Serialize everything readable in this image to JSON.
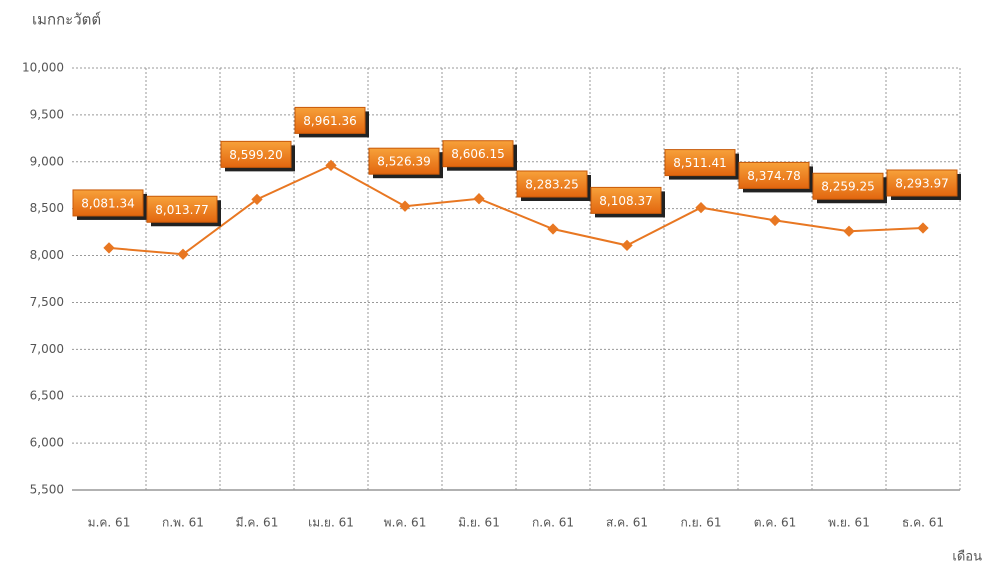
{
  "chart_data": {
    "type": "line",
    "y_axis_label": "เมกกะวัตต์",
    "x_axis_label": "เดือน",
    "categories": [
      "ม.ค. 61",
      "ก.พ. 61",
      "มี.ค. 61",
      "เม.ย. 61",
      "พ.ค. 61",
      "มิ.ย. 61",
      "ก.ค. 61",
      "ส.ค. 61",
      "ก.ย. 61",
      "ต.ค. 61",
      "พ.ย. 61",
      "ธ.ค. 61"
    ],
    "series": [
      {
        "color": "#e87722",
        "values": [
          8081.34,
          8013.77,
          8599.2,
          8961.36,
          8526.39,
          8606.15,
          8283.25,
          8108.37,
          8511.41,
          8374.78,
          8259.25,
          8293.97
        ],
        "value_labels": [
          "8,081.34",
          "8,013.77",
          "8,599.20",
          "8,961.36",
          "8,526.39",
          "8,606.15",
          "8,283.25",
          "8,108.37",
          "8,511.41",
          "8,374.78",
          "8,259.25",
          "8,293.97"
        ]
      }
    ],
    "ylim": [
      5500,
      10000
    ],
    "yticks": [
      {
        "value": 5500,
        "label": "5,500"
      },
      {
        "value": 6000,
        "label": "6,000"
      },
      {
        "value": 6500,
        "label": "6,500"
      },
      {
        "value": 7000,
        "label": "7,000"
      },
      {
        "value": 7500,
        "label": "7,500"
      },
      {
        "value": 8000,
        "label": "8,000"
      },
      {
        "value": 8500,
        "label": "8,500"
      },
      {
        "value": 9000,
        "label": "9,000"
      },
      {
        "value": 9500,
        "label": "9,500"
      },
      {
        "value": 10000,
        "label": "10,000"
      }
    ],
    "grid": true
  }
}
